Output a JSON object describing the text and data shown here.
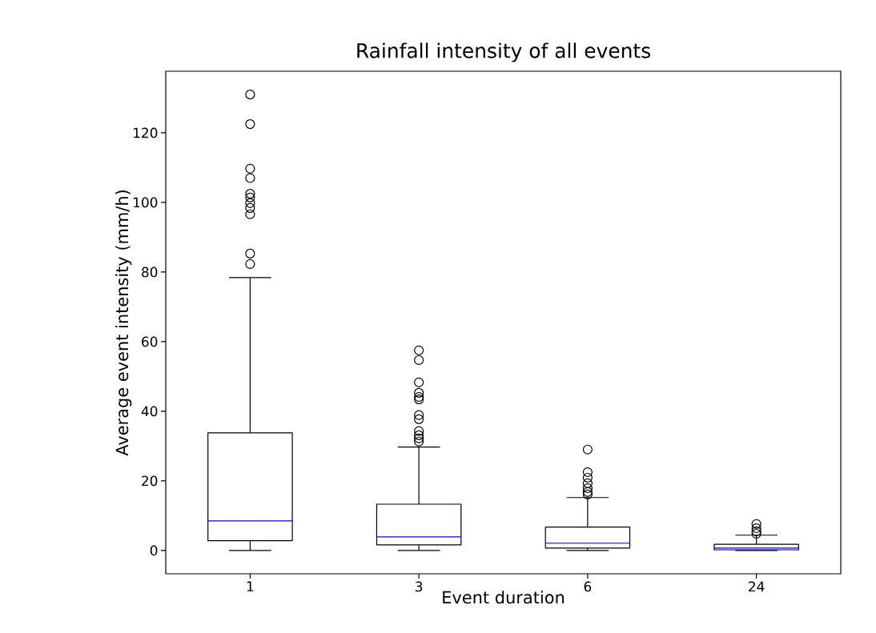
{
  "chart_data": {
    "type": "box",
    "title": "Rainfall intensity of all events",
    "xlabel": "Event duration",
    "ylabel": "Average event intensity (mm/h)",
    "categories": [
      "1",
      "3",
      "6",
      "24"
    ],
    "boxes": [
      {
        "low": 0,
        "q1": 2.8,
        "median": 8.5,
        "q3": 33.8,
        "high": 78.4,
        "outliers": [
          131,
          122.5,
          109.7,
          107,
          102.5,
          101.4,
          99.8,
          98.4,
          96.6,
          85.3,
          82.3
        ]
      },
      {
        "low": 0,
        "q1": 1.6,
        "median": 3.9,
        "q3": 13.3,
        "high": 29.7,
        "outliers": [
          57.5,
          54.7,
          48.3,
          45.3,
          44.1,
          43.4,
          38.9,
          37.7,
          34.3,
          33.1,
          32.2,
          31.3
        ]
      },
      {
        "low": 0,
        "q1": 0.7,
        "median": 2.1,
        "q3": 6.7,
        "high": 15.2,
        "outliers": [
          29,
          22.5,
          20.9,
          19.3,
          17.9,
          16.8,
          16.1
        ]
      },
      {
        "low": 0,
        "q1": 0.2,
        "median": 0.7,
        "q3": 1.8,
        "high": 4.4,
        "outliers": [
          7.6,
          6.4,
          5.5,
          4.8
        ]
      }
    ],
    "ylim": [
      -6.7,
      137.7
    ],
    "yticks": [
      0,
      20,
      40,
      60,
      80,
      100,
      120
    ],
    "grid": false,
    "marker": "circle"
  }
}
